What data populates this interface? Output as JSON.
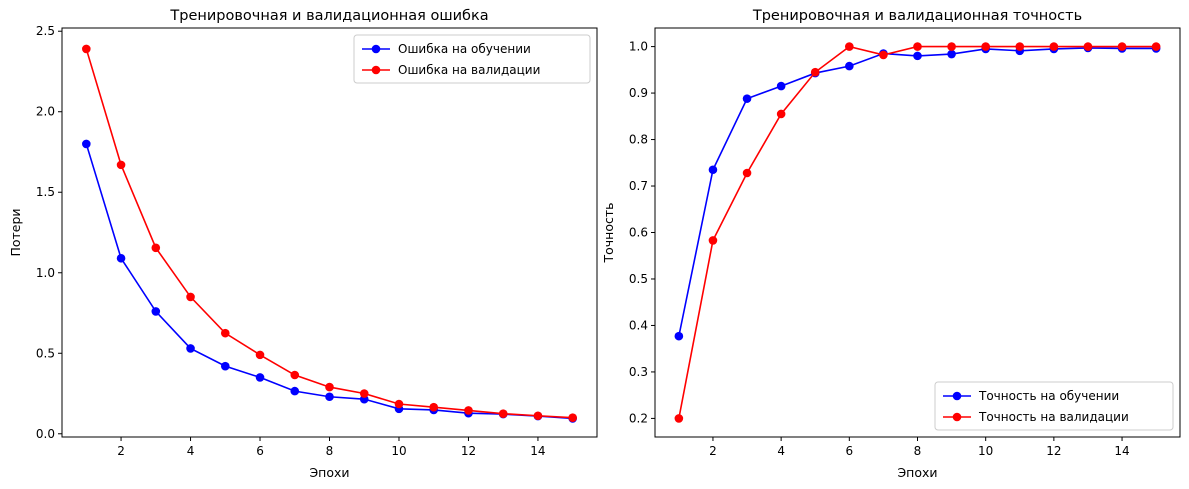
{
  "chart_data": [
    {
      "type": "line",
      "title": "Тренировочная и валидационная ошибка",
      "xlabel": "Эпохи",
      "ylabel": "Потери",
      "x": [
        1,
        2,
        3,
        4,
        5,
        6,
        7,
        8,
        9,
        10,
        11,
        12,
        13,
        14,
        15
      ],
      "xlim": [
        0.3,
        15.7
      ],
      "ylim": [
        -0.02,
        2.52
      ],
      "xticks": [
        2,
        4,
        6,
        8,
        10,
        12,
        14
      ],
      "yticks": [
        0.0,
        0.5,
        1.0,
        1.5,
        2.0,
        2.5
      ],
      "ytick_labels": [
        "0.0",
        "0.5",
        "1.0",
        "1.5",
        "2.0",
        "2.5"
      ],
      "grid": false,
      "legend": "top-right",
      "series": [
        {
          "name": "Ошибка на обучении",
          "color": "#0000ff",
          "values": [
            1.8,
            1.09,
            0.76,
            0.53,
            0.42,
            0.35,
            0.265,
            0.23,
            0.215,
            0.155,
            0.148,
            0.128,
            0.122,
            0.11,
            0.095
          ]
        },
        {
          "name": "Ошибка на валидации",
          "color": "#ff0000",
          "values": [
            2.39,
            1.67,
            1.155,
            0.85,
            0.625,
            0.49,
            0.365,
            0.29,
            0.25,
            0.185,
            0.165,
            0.145,
            0.125,
            0.112,
            0.1
          ]
        }
      ]
    },
    {
      "type": "line",
      "title": "Тренировочная и валидационная точность",
      "xlabel": "Эпохи",
      "ylabel": "Точность",
      "x": [
        1,
        2,
        3,
        4,
        5,
        6,
        7,
        8,
        9,
        10,
        11,
        12,
        13,
        14,
        15
      ],
      "xlim": [
        0.3,
        15.7
      ],
      "ylim": [
        0.16,
        1.04
      ],
      "xticks": [
        2,
        4,
        6,
        8,
        10,
        12,
        14
      ],
      "yticks": [
        0.2,
        0.3,
        0.4,
        0.5,
        0.6,
        0.7,
        0.8,
        0.9,
        1.0
      ],
      "ytick_labels": [
        "0.2",
        "0.3",
        "0.4",
        "0.5",
        "0.6",
        "0.7",
        "0.8",
        "0.9",
        "1.0"
      ],
      "grid": false,
      "legend": "bottom-right",
      "series": [
        {
          "name": "Точность на обучении",
          "color": "#0000ff",
          "values": [
            0.377,
            0.735,
            0.888,
            0.915,
            0.943,
            0.958,
            0.985,
            0.98,
            0.984,
            0.995,
            0.991,
            0.995,
            0.997,
            0.996,
            0.996
          ]
        },
        {
          "name": "Точность на валидации",
          "color": "#ff0000",
          "values": [
            0.2,
            0.583,
            0.728,
            0.855,
            0.945,
            1.0,
            0.982,
            1.0,
            1.0,
            1.0,
            1.0,
            1.0,
            1.0,
            1.0,
            1.0
          ]
        }
      ]
    }
  ]
}
